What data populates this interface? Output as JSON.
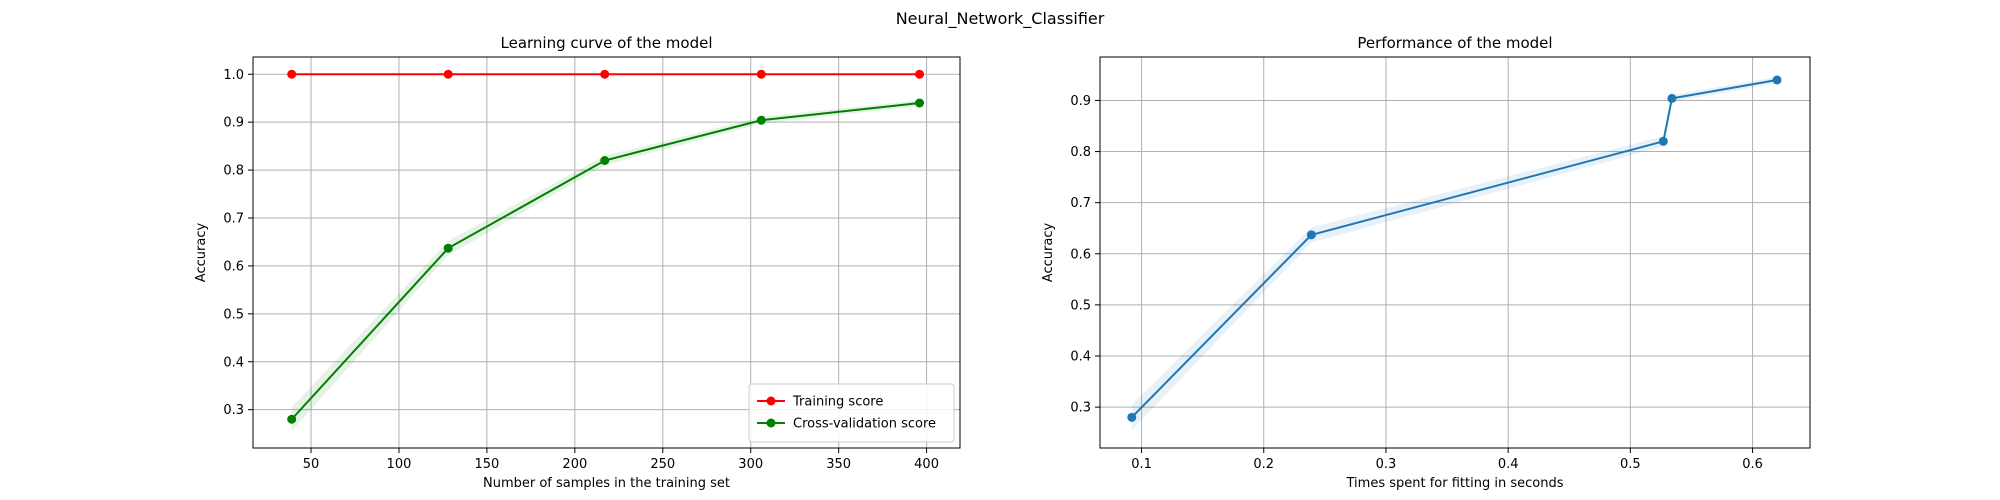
{
  "figure": {
    "suptitle": "Neural_Network_Classifier"
  },
  "chart_data": [
    {
      "type": "line",
      "title": "Learning curve of the model",
      "xlabel": "Number of samples in the training set",
      "ylabel": "Accuracy",
      "xlim": [
        17,
        419
      ],
      "ylim": [
        0.22,
        1.036
      ],
      "xticks": [
        50,
        100,
        150,
        200,
        250,
        300,
        350,
        400
      ],
      "yticks": [
        0.3,
        0.4,
        0.5,
        0.6,
        0.7,
        0.8,
        0.9,
        1.0
      ],
      "grid": true,
      "legend_position": "lower-right",
      "series": [
        {
          "name": "Training score",
          "color": "#ff0000",
          "x": [
            39,
            128,
            217,
            306,
            396
          ],
          "y": [
            1.0,
            1.0,
            1.0,
            1.0,
            1.0
          ],
          "band": [
            0,
            0,
            0,
            0,
            0
          ]
        },
        {
          "name": "Cross-validation score",
          "color": "#008000",
          "x": [
            39,
            128,
            217,
            306,
            396
          ],
          "y": [
            0.28,
            0.637,
            0.82,
            0.904,
            0.94
          ],
          "band": [
            0.025,
            0.015,
            0.01,
            0.007,
            0.006
          ]
        }
      ]
    },
    {
      "type": "line",
      "title": "Performance of the model",
      "xlabel": "Times spent for fitting in seconds",
      "ylabel": "Accuracy",
      "xlim": [
        0.066,
        0.647
      ],
      "ylim": [
        0.22,
        0.985
      ],
      "xticks": [
        0.1,
        0.2,
        0.3,
        0.4,
        0.5,
        0.6
      ],
      "yticks": [
        0.3,
        0.4,
        0.5,
        0.6,
        0.7,
        0.8,
        0.9
      ],
      "grid": true,
      "series": [
        {
          "color": "#1f77b4",
          "x": [
            0.092,
            0.239,
            0.527,
            0.534,
            0.62
          ],
          "y": [
            0.28,
            0.637,
            0.82,
            0.904,
            0.94
          ],
          "band": [
            0.025,
            0.015,
            0.01,
            0.007,
            0.006
          ]
        }
      ]
    }
  ]
}
